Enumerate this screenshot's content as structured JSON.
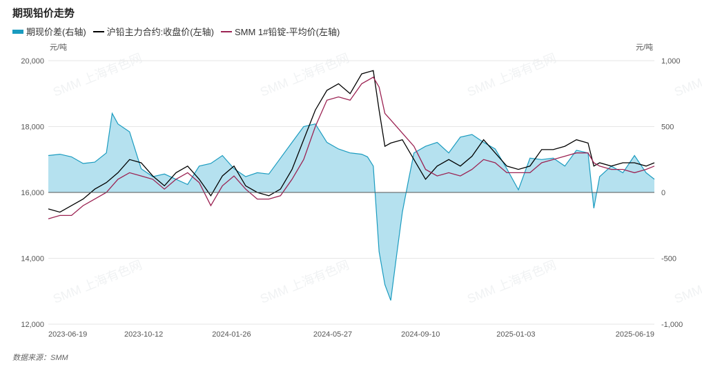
{
  "title": "期现铅价走势",
  "legend": [
    {
      "label": "期现价差(右轴)",
      "color": "#1a9bbf",
      "kind": "area"
    },
    {
      "label": "沪铅主力合约:收盘价(左轴)",
      "color": "#000000",
      "kind": "line"
    },
    {
      "label": "SMM 1#铅锭-平均价(左轴)",
      "color": "#9b2252",
      "kind": "line"
    }
  ],
  "left_unit": "元/吨",
  "right_unit": "元/吨",
  "source": "数据来源：SMM",
  "watermark": "SMM 上海有色网",
  "chart_data": {
    "type": "line",
    "title": "期现铅价走势",
    "x_ticks": [
      "2023-06-19",
      "2023-10-12",
      "2024-01-26",
      "2024-05-27",
      "2024-09-10",
      "2025-01-03",
      "2025-06-19"
    ],
    "x_range": [
      "2023-06-19",
      "2025-06-19"
    ],
    "y_left": {
      "label": "元/吨",
      "ticks": [
        12000,
        14000,
        16000,
        18000,
        20000
      ],
      "tick_labels": [
        "12,000",
        "14,000",
        "16,000",
        "18,000",
        "20,000"
      ],
      "ylim": [
        12000,
        20000
      ]
    },
    "y_right": {
      "label": "元/吨",
      "ticks": [
        -1000,
        -500,
        0,
        500,
        1000
      ],
      "tick_labels": [
        "-1,000",
        "-500",
        "0",
        "500",
        "1,000"
      ],
      "ylim": [
        -1000,
        1000
      ]
    },
    "grid": true,
    "legend_position": "top-left",
    "series": [
      {
        "name": "期现价差(右轴)",
        "axis": "right",
        "type": "area",
        "color": "#1a9bbf",
        "points": [
          [
            "2023-06-19",
            280
          ],
          [
            "2023-07-03",
            290
          ],
          [
            "2023-07-17",
            270
          ],
          [
            "2023-07-31",
            220
          ],
          [
            "2023-08-14",
            230
          ],
          [
            "2023-08-28",
            300
          ],
          [
            "2023-09-04",
            600
          ],
          [
            "2023-09-11",
            520
          ],
          [
            "2023-09-25",
            460
          ],
          [
            "2023-10-09",
            180
          ],
          [
            "2023-10-23",
            120
          ],
          [
            "2023-11-06",
            140
          ],
          [
            "2023-11-20",
            100
          ],
          [
            "2023-12-04",
            60
          ],
          [
            "2023-12-18",
            200
          ],
          [
            "2024-01-01",
            220
          ],
          [
            "2024-01-15",
            280
          ],
          [
            "2024-01-29",
            180
          ],
          [
            "2024-02-12",
            120
          ],
          [
            "2024-02-26",
            150
          ],
          [
            "2024-03-11",
            140
          ],
          [
            "2024-03-25",
            260
          ],
          [
            "2024-04-08",
            380
          ],
          [
            "2024-04-22",
            500
          ],
          [
            "2024-05-06",
            520
          ],
          [
            "2024-05-20",
            380
          ],
          [
            "2024-06-03",
            330
          ],
          [
            "2024-06-17",
            300
          ],
          [
            "2024-07-01",
            290
          ],
          [
            "2024-07-08",
            270
          ],
          [
            "2024-07-15",
            200
          ],
          [
            "2024-07-22",
            -450
          ],
          [
            "2024-07-29",
            -700
          ],
          [
            "2024-08-05",
            -820
          ],
          [
            "2024-08-12",
            -480
          ],
          [
            "2024-08-19",
            -150
          ],
          [
            "2024-08-26",
            80
          ],
          [
            "2024-09-02",
            300
          ],
          [
            "2024-09-16",
            350
          ],
          [
            "2024-09-30",
            380
          ],
          [
            "2024-10-14",
            300
          ],
          [
            "2024-10-28",
            420
          ],
          [
            "2024-11-11",
            440
          ],
          [
            "2024-11-25",
            380
          ],
          [
            "2024-12-09",
            330
          ],
          [
            "2024-12-23",
            180
          ],
          [
            "2025-01-06",
            20
          ],
          [
            "2025-01-20",
            260
          ],
          [
            "2025-02-03",
            250
          ],
          [
            "2025-02-17",
            260
          ],
          [
            "2025-03-03",
            200
          ],
          [
            "2025-03-17",
            320
          ],
          [
            "2025-03-31",
            300
          ],
          [
            "2025-04-07",
            -120
          ],
          [
            "2025-04-14",
            120
          ],
          [
            "2025-04-28",
            200
          ],
          [
            "2025-05-12",
            150
          ],
          [
            "2025-05-26",
            280
          ],
          [
            "2025-06-09",
            150
          ],
          [
            "2025-06-19",
            100
          ]
        ]
      },
      {
        "name": "沪铅主力合约:收盘价(左轴)",
        "axis": "left",
        "type": "line",
        "color": "#000000",
        "points": [
          [
            "2023-06-19",
            15500
          ],
          [
            "2023-07-03",
            15400
          ],
          [
            "2023-07-17",
            15600
          ],
          [
            "2023-07-31",
            15800
          ],
          [
            "2023-08-14",
            16100
          ],
          [
            "2023-08-28",
            16300
          ],
          [
            "2023-09-11",
            16600
          ],
          [
            "2023-09-25",
            17000
          ],
          [
            "2023-10-09",
            16900
          ],
          [
            "2023-10-23",
            16500
          ],
          [
            "2023-11-06",
            16200
          ],
          [
            "2023-11-20",
            16600
          ],
          [
            "2023-12-04",
            16800
          ],
          [
            "2023-12-18",
            16400
          ],
          [
            "2024-01-01",
            15900
          ],
          [
            "2024-01-15",
            16500
          ],
          [
            "2024-01-29",
            16800
          ],
          [
            "2024-02-12",
            16200
          ],
          [
            "2024-02-26",
            16000
          ],
          [
            "2024-03-11",
            15900
          ],
          [
            "2024-03-25",
            16100
          ],
          [
            "2024-04-08",
            16700
          ],
          [
            "2024-04-22",
            17600
          ],
          [
            "2024-05-06",
            18500
          ],
          [
            "2024-05-20",
            19100
          ],
          [
            "2024-06-03",
            19300
          ],
          [
            "2024-06-17",
            19000
          ],
          [
            "2024-07-01",
            19600
          ],
          [
            "2024-07-15",
            19700
          ],
          [
            "2024-07-22",
            18500
          ],
          [
            "2024-07-29",
            17400
          ],
          [
            "2024-08-05",
            17500
          ],
          [
            "2024-08-19",
            17600
          ],
          [
            "2024-09-02",
            17000
          ],
          [
            "2024-09-16",
            16400
          ],
          [
            "2024-09-30",
            16800
          ],
          [
            "2024-10-14",
            17000
          ],
          [
            "2024-10-28",
            16800
          ],
          [
            "2024-11-11",
            17100
          ],
          [
            "2024-11-25",
            17600
          ],
          [
            "2024-12-09",
            17200
          ],
          [
            "2024-12-23",
            16800
          ],
          [
            "2025-01-06",
            16700
          ],
          [
            "2025-01-20",
            16800
          ],
          [
            "2025-02-03",
            17300
          ],
          [
            "2025-02-17",
            17300
          ],
          [
            "2025-03-03",
            17400
          ],
          [
            "2025-03-17",
            17600
          ],
          [
            "2025-03-31",
            17500
          ],
          [
            "2025-04-07",
            16800
          ],
          [
            "2025-04-14",
            16900
          ],
          [
            "2025-04-28",
            16800
          ],
          [
            "2025-05-12",
            16900
          ],
          [
            "2025-05-26",
            16900
          ],
          [
            "2025-06-09",
            16800
          ],
          [
            "2025-06-19",
            16900
          ]
        ]
      },
      {
        "name": "SMM 1#铅锭-平均价(左轴)",
        "axis": "left",
        "type": "line",
        "color": "#9b2252",
        "points": [
          [
            "2023-06-19",
            15200
          ],
          [
            "2023-07-03",
            15300
          ],
          [
            "2023-07-17",
            15300
          ],
          [
            "2023-07-31",
            15600
          ],
          [
            "2023-08-14",
            15800
          ],
          [
            "2023-08-28",
            16000
          ],
          [
            "2023-09-11",
            16400
          ],
          [
            "2023-09-25",
            16600
          ],
          [
            "2023-10-09",
            16500
          ],
          [
            "2023-10-23",
            16400
          ],
          [
            "2023-11-06",
            16100
          ],
          [
            "2023-11-20",
            16400
          ],
          [
            "2023-12-04",
            16600
          ],
          [
            "2023-12-18",
            16300
          ],
          [
            "2024-01-01",
            15600
          ],
          [
            "2024-01-15",
            16200
          ],
          [
            "2024-01-29",
            16500
          ],
          [
            "2024-02-12",
            16100
          ],
          [
            "2024-02-26",
            15800
          ],
          [
            "2024-03-11",
            15800
          ],
          [
            "2024-03-25",
            15900
          ],
          [
            "2024-04-08",
            16400
          ],
          [
            "2024-04-22",
            17000
          ],
          [
            "2024-05-06",
            18000
          ],
          [
            "2024-05-20",
            18800
          ],
          [
            "2024-06-03",
            18900
          ],
          [
            "2024-06-17",
            18800
          ],
          [
            "2024-07-01",
            19300
          ],
          [
            "2024-07-15",
            19500
          ],
          [
            "2024-07-22",
            19200
          ],
          [
            "2024-07-29",
            18400
          ],
          [
            "2024-08-05",
            18200
          ],
          [
            "2024-08-19",
            17800
          ],
          [
            "2024-09-02",
            17400
          ],
          [
            "2024-09-16",
            16700
          ],
          [
            "2024-09-30",
            16500
          ],
          [
            "2024-10-14",
            16600
          ],
          [
            "2024-10-28",
            16500
          ],
          [
            "2024-11-11",
            16700
          ],
          [
            "2024-11-25",
            17000
          ],
          [
            "2024-12-09",
            16900
          ],
          [
            "2024-12-23",
            16600
          ],
          [
            "2025-01-06",
            16600
          ],
          [
            "2025-01-20",
            16600
          ],
          [
            "2025-02-03",
            16900
          ],
          [
            "2025-02-17",
            17000
          ],
          [
            "2025-03-03",
            17100
          ],
          [
            "2025-03-17",
            17200
          ],
          [
            "2025-03-31",
            17200
          ],
          [
            "2025-04-07",
            16900
          ],
          [
            "2025-04-14",
            16800
          ],
          [
            "2025-04-28",
            16700
          ],
          [
            "2025-05-12",
            16700
          ],
          [
            "2025-05-26",
            16600
          ],
          [
            "2025-06-09",
            16700
          ],
          [
            "2025-06-19",
            16800
          ]
        ]
      }
    ]
  }
}
